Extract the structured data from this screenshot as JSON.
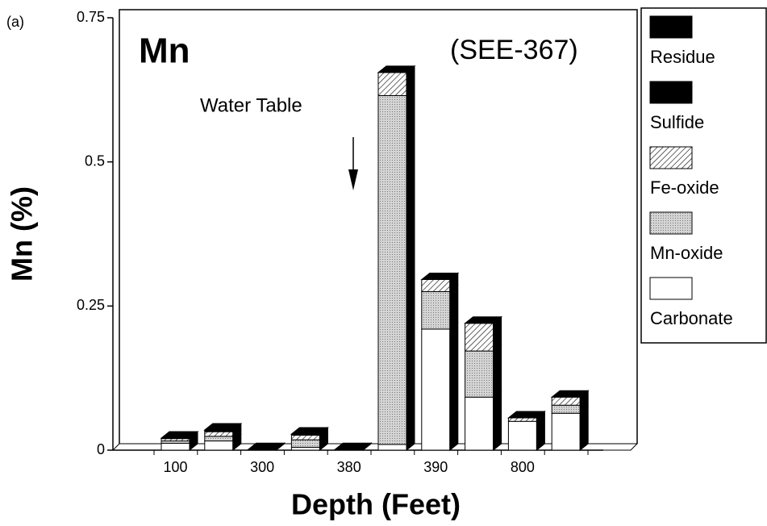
{
  "chart_data": {
    "type": "stacked_bar",
    "panel_label": "(a)",
    "title": "Mn",
    "subtitle": "(SEE-367)",
    "annotation": "Water Table",
    "x_label": "Depth  (Feet)",
    "y_label": "Mn  (%)",
    "categories": [
      "100",
      null,
      "300",
      null,
      "380",
      null,
      "390",
      null,
      "800",
      null
    ],
    "series": [
      {
        "name": "Carbonate",
        "color": "#ffffff",
        "pattern": "solid",
        "values": [
          0.012,
          0.016,
          0.001,
          0.005,
          0.001,
          0.01,
          0.21,
          0.092,
          0.05,
          0.064
        ]
      },
      {
        "name": "Mn-oxide",
        "color": "#c8c8c8",
        "pattern": "dots",
        "values": [
          0.004,
          0.008,
          0,
          0.013,
          0,
          0.605,
          0.065,
          0.08,
          0,
          0.014
        ]
      },
      {
        "name": "Fe-oxide",
        "color": "#ffffff",
        "pattern": "hatch",
        "values": [
          0.004,
          0.008,
          0,
          0.008,
          0,
          0.04,
          0.021,
          0.048,
          0.006,
          0.014
        ]
      },
      {
        "name": "Sulfide",
        "color": "#000000",
        "pattern": "solid",
        "values": [
          0,
          0,
          0,
          0,
          0,
          0,
          0,
          0,
          0,
          0
        ]
      },
      {
        "name": "Residue",
        "color": "#000000",
        "pattern": "solid",
        "values": [
          0.001,
          0.003,
          0,
          0.002,
          0,
          0,
          0,
          0,
          0,
          0
        ]
      }
    ],
    "ylim": [
      0,
      0.75
    ],
    "yticks": [
      0,
      0.25,
      0.5,
      0.75
    ]
  }
}
